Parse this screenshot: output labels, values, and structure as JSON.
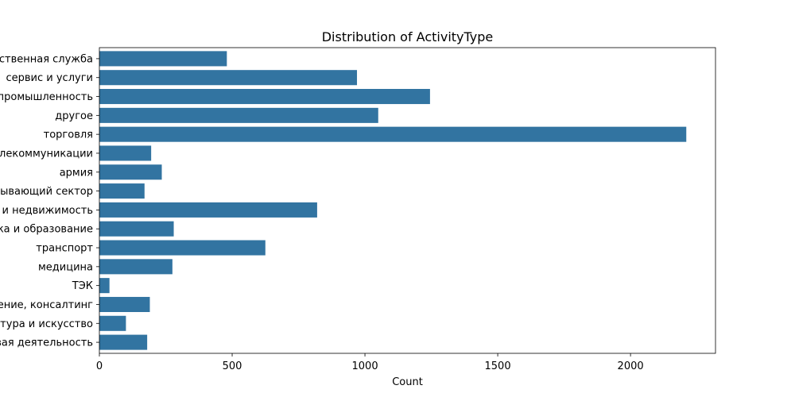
{
  "chart_data": {
    "type": "bar",
    "orientation": "horizontal",
    "title": "Distribution of ActivityType",
    "xlabel": "Count",
    "ylabel": "",
    "xlim": [
      0,
      2320
    ],
    "xticks": [
      0,
      500,
      1000,
      1500,
      2000
    ],
    "grid": false,
    "bar_color": "#3274a1",
    "categories": [
      "государственная служба",
      "сервис и услуги",
      "промышленность",
      "другое",
      "торговля",
      "IT и телекоммуникации",
      "армия",
      "добывающий сектор",
      "строительство и недвижимость",
      "наука и образование",
      "транспорт",
      "медицина",
      "ТЭК",
      "управление, консалтинг",
      "культура и искусство",
      "финансовая деятельность"
    ],
    "values": [
      480,
      970,
      1245,
      1050,
      2210,
      195,
      235,
      170,
      820,
      280,
      625,
      275,
      38,
      190,
      100,
      180
    ]
  }
}
